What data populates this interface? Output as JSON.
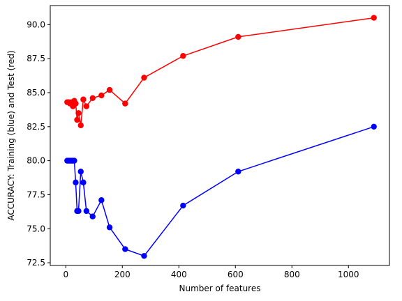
{
  "chart_data": {
    "type": "line",
    "xlabel": "Number of features",
    "ylabel": "ACCURACY: Training (blue) and Test (red)",
    "xlim": [
      -55,
      1145
    ],
    "ylim": [
      72.3,
      91.4
    ],
    "xticks": [
      0,
      200,
      400,
      600,
      800,
      1000
    ],
    "yticks": [
      72.5,
      75.0,
      77.5,
      80.0,
      82.5,
      85.0,
      87.5,
      90.0
    ],
    "ytick_labels": [
      "72.5",
      "75.0",
      "77.5",
      "80.0",
      "82.5",
      "85.0",
      "87.5",
      "90.0"
    ],
    "grid": false,
    "series": [
      {
        "color": "#0000ff",
        "marker": "circle",
        "x": [
          5,
          10,
          15,
          20,
          25,
          30,
          35,
          40,
          45,
          53,
          62,
          73,
          95,
          126,
          155,
          210,
          277,
          415,
          610,
          1090
        ],
        "y": [
          80.0,
          80.0,
          80.0,
          80.0,
          80.0,
          80.0,
          78.4,
          76.3,
          76.3,
          79.2,
          78.4,
          76.3,
          75.9,
          77.1,
          75.1,
          73.5,
          73.0,
          76.7,
          79.2,
          82.5
        ]
      },
      {
        "color": "#ff0000",
        "marker": "circle",
        "x": [
          5,
          10,
          15,
          20,
          25,
          30,
          35,
          40,
          45,
          53,
          62,
          73,
          95,
          126,
          155,
          210,
          277,
          415,
          610,
          1090
        ],
        "y": [
          84.3,
          84.3,
          84.2,
          84.3,
          84.0,
          84.4,
          84.2,
          83.0,
          83.5,
          82.6,
          84.5,
          84.0,
          84.6,
          84.8,
          85.2,
          84.2,
          86.1,
          87.7,
          89.1,
          90.5
        ]
      }
    ]
  }
}
